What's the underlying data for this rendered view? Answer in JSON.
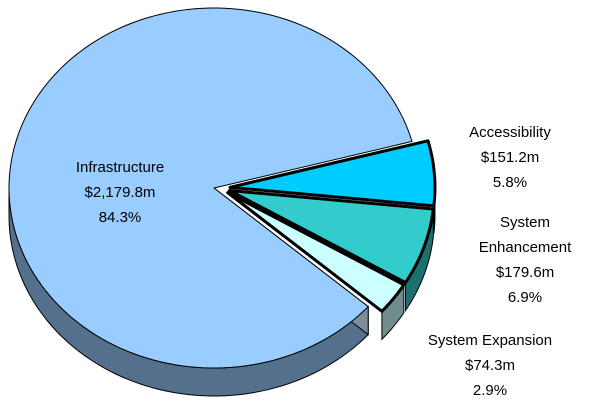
{
  "chart_data": {
    "type": "pie",
    "categories": [
      "Infrastructure",
      "Accessibility",
      "System Enhancement",
      "System Expansion"
    ],
    "values": [
      84.3,
      5.8,
      6.9,
      2.9
    ],
    "value_labels": [
      "84.3%",
      "5.8%",
      "6.9%",
      "2.9%"
    ],
    "amounts": [
      2179.8,
      151.2,
      179.6,
      74.3
    ],
    "amount_labels": [
      "$2,179.8m",
      "$151.2m",
      "$179.6m",
      "$74.3m"
    ],
    "colors": [
      "#99ccff",
      "#00ccff",
      "#33cccc",
      "#ccffff"
    ]
  }
}
